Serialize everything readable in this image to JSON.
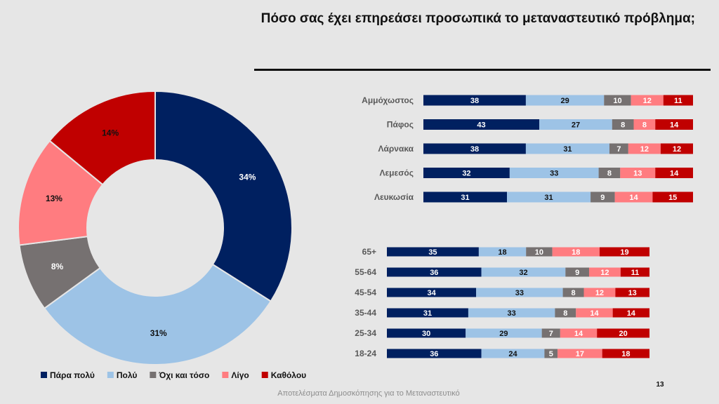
{
  "slide": {
    "title": "Πόσο σας έχει επηρεάσει προσωπικά το μεταναστευτικό πρόβλημα;",
    "footer": "Αποτελέσματα Δημοσκόπησης για το Μεταναστευτικό",
    "page_number": "13"
  },
  "chart_data": [
    {
      "type": "pie",
      "variant": "donut",
      "categories": [
        "Πάρα πολύ",
        "Πολύ",
        "Όχι και τόσο",
        "Λίγο",
        "Καθόλου"
      ],
      "values": [
        34,
        31,
        8,
        13,
        14
      ],
      "labels": [
        "34%",
        "31%",
        "8%",
        "13%",
        "14%"
      ],
      "colors": [
        "#002060",
        "#9dc3e6",
        "#767171",
        "#ff7c80",
        "#c00000"
      ],
      "legend": "bottom"
    },
    {
      "type": "bar",
      "orientation": "horizontal",
      "stacked": true,
      "categories": [
        "Αμμόχωστος",
        "Πάφος",
        "Λάρνακα",
        "Λεμεσός",
        "Λευκωσία"
      ],
      "series": [
        {
          "name": "Πάρα πολύ",
          "color": "#002060",
          "values": [
            38,
            43,
            38,
            32,
            31
          ]
        },
        {
          "name": "Πολύ",
          "color": "#9dc3e6",
          "values": [
            29,
            27,
            31,
            33,
            31
          ]
        },
        {
          "name": "Όχι και τόσο",
          "color": "#767171",
          "values": [
            10,
            8,
            7,
            8,
            9
          ]
        },
        {
          "name": "Λίγο",
          "color": "#ff7c80",
          "values": [
            12,
            8,
            12,
            13,
            14
          ]
        },
        {
          "name": "Καθόλου",
          "color": "#c00000",
          "values": [
            11,
            14,
            12,
            14,
            15
          ]
        }
      ]
    },
    {
      "type": "bar",
      "orientation": "horizontal",
      "stacked": true,
      "categories": [
        "65+",
        "55-64",
        "45-54",
        "35-44",
        "25-34",
        "18-24"
      ],
      "series": [
        {
          "name": "Πάρα πολύ",
          "color": "#002060",
          "values": [
            35,
            36,
            34,
            31,
            30,
            36
          ]
        },
        {
          "name": "Πολύ",
          "color": "#9dc3e6",
          "values": [
            18,
            32,
            33,
            33,
            29,
            24
          ]
        },
        {
          "name": "Όχι και τόσο",
          "color": "#767171",
          "values": [
            10,
            9,
            8,
            8,
            7,
            5
          ]
        },
        {
          "name": "Λίγο",
          "color": "#ff7c80",
          "values": [
            18,
            12,
            12,
            14,
            14,
            17
          ]
        },
        {
          "name": "Καθόλου",
          "color": "#c00000",
          "values": [
            19,
            11,
            13,
            14,
            20,
            18
          ]
        }
      ]
    }
  ]
}
